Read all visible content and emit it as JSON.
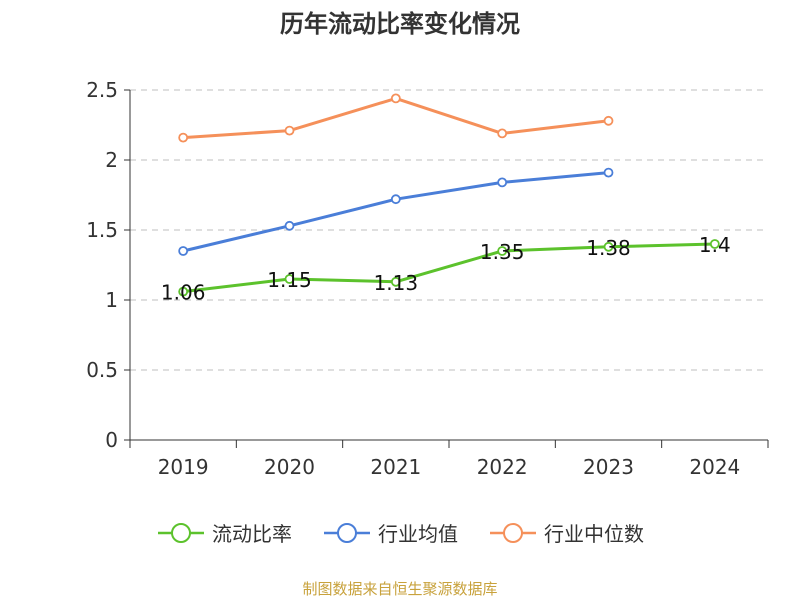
{
  "title": "历年流动比率变化情况",
  "footer": "制图数据来自恒生聚源数据库",
  "chart_data": {
    "type": "line",
    "categories": [
      "2019",
      "2020",
      "2021",
      "2022",
      "2023",
      "2024"
    ],
    "ylim": [
      0,
      2.5
    ],
    "yticks": [
      "0",
      "0.5",
      "1",
      "1.5",
      "2",
      "2.5"
    ],
    "grid": true,
    "legend_position": "bottom",
    "series": [
      {
        "name": "流动比率",
        "color": "#5cc22c",
        "values": [
          1.06,
          1.15,
          1.13,
          1.35,
          1.38,
          1.4
        ],
        "labels": [
          "1.06",
          "1.15",
          "1.13",
          "1.35",
          "1.38",
          "1.4"
        ]
      },
      {
        "name": "行业均值",
        "color": "#4a7ed8",
        "values": [
          1.35,
          1.53,
          1.72,
          1.84,
          1.91,
          null
        ]
      },
      {
        "name": "行业中位数",
        "color": "#f5905a",
        "values": [
          2.16,
          2.21,
          2.44,
          2.19,
          2.28,
          null
        ]
      }
    ]
  }
}
